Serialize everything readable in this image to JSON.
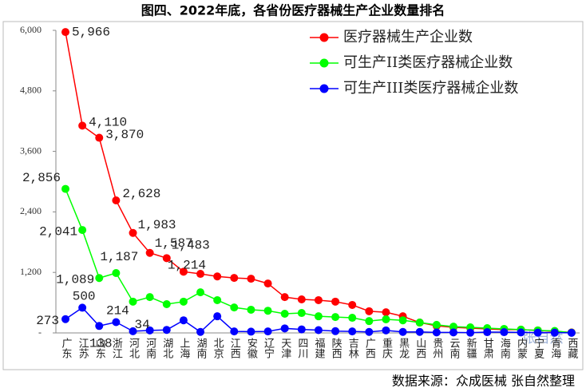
{
  "chart_data": {
    "type": "line",
    "title": "图四、2022年底，各省份医疗器械生产企业数量排名",
    "source": "数据来源：众成医械 张自然整理",
    "watermark": "张自然",
    "categories": [
      "广东",
      "江苏",
      "山东",
      "浙江",
      "河北",
      "河南",
      "湖北",
      "上海",
      "湖南",
      "北京",
      "江西",
      "安徽",
      "辽宁",
      "天津",
      "四川",
      "福建",
      "陕西",
      "吉林",
      "广西",
      "重庆",
      "黑龙",
      "山西",
      "贵州",
      "云南",
      "新疆",
      "甘肃",
      "海南",
      "内蒙",
      "宁夏",
      "青海",
      "西藏"
    ],
    "ylim": [
      0,
      6000
    ],
    "yticks": [
      {
        "value": 0,
        "label": "-"
      },
      {
        "value": 1200,
        "label": "1,200"
      },
      {
        "value": 2400,
        "label": "2,400"
      },
      {
        "value": 3600,
        "label": "3,600"
      },
      {
        "value": 4800,
        "label": "4,800"
      },
      {
        "value": 6000,
        "label": "6,000"
      }
    ],
    "legend": "upper right",
    "series": [
      {
        "name": "医疗器械生产企业数",
        "color": "#ff0000",
        "values": [
          5966,
          4110,
          3870,
          2628,
          1983,
          1587,
          1483,
          1214,
          1171,
          1120,
          1090,
          1075,
          980,
          710,
          665,
          650,
          620,
          555,
          430,
          410,
          330,
          205,
          140,
          110,
          95,
          80,
          65,
          65,
          50,
          30,
          10
        ],
        "value_labels": [
          "5,966",
          "4,110",
          "3,870",
          "2,628",
          "1,983",
          "1,587",
          "1,483",
          "1,214",
          null,
          null,
          null,
          null,
          null,
          null,
          null,
          null,
          null,
          null,
          null,
          null,
          null,
          null,
          null,
          null,
          null,
          null,
          null,
          null,
          null,
          null,
          null
        ]
      },
      {
        "name": "可生产II类医疗器械企业数",
        "color": "#00ff00",
        "values": [
          2856,
          2041,
          1089,
          1187,
          620,
          710,
          570,
          620,
          805,
          650,
          505,
          460,
          440,
          380,
          395,
          330,
          315,
          300,
          235,
          270,
          250,
          205,
          160,
          125,
          110,
          95,
          80,
          65,
          50,
          40,
          5
        ],
        "value_labels": [
          "2,856",
          "2,041",
          "1,089",
          "1,187",
          null,
          null,
          null,
          null,
          null,
          null,
          null,
          null,
          null,
          null,
          null,
          null,
          null,
          null,
          null,
          null,
          null,
          null,
          null,
          null,
          null,
          null,
          null,
          null,
          null,
          null,
          null
        ]
      },
      {
        "name": "可生产III类医疗器械企业数",
        "color": "#0000ff",
        "values": [
          273,
          500,
          138,
          214,
          34,
          50,
          60,
          250,
          20,
          330,
          30,
          25,
          30,
          90,
          70,
          55,
          35,
          30,
          20,
          50,
          20,
          20,
          10,
          10,
          5,
          15,
          15,
          10,
          5,
          5,
          2
        ]
      }
    ]
  }
}
